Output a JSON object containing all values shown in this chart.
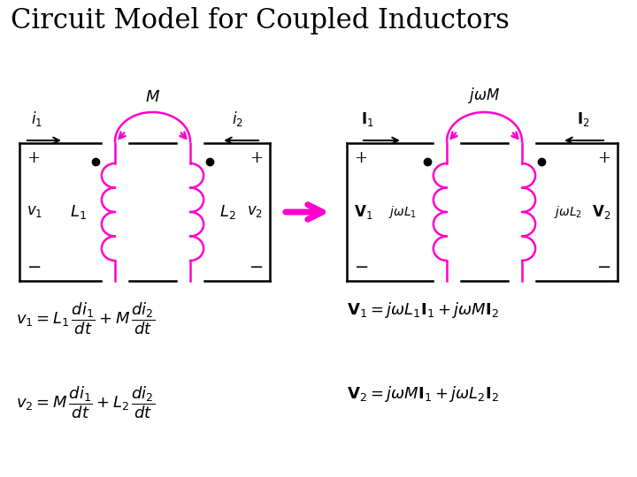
{
  "title": "Circuit Model for Coupled Inductors",
  "title_fontsize": 22,
  "bg_color": "#ffffff",
  "black": "#000000",
  "magenta": "#ff00cc",
  "lw_circuit": 1.8,
  "lw_coil": 1.8,
  "fig_w": 7.2,
  "fig_h": 5.4
}
